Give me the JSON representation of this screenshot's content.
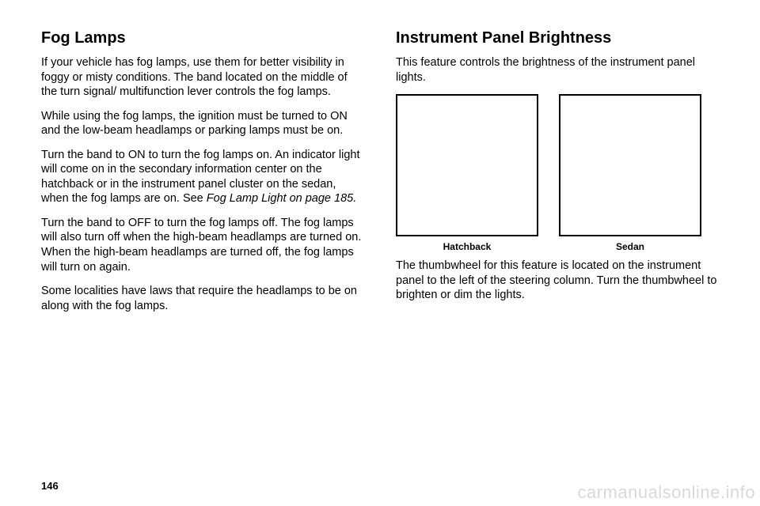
{
  "left": {
    "heading": "Fog Lamps",
    "p1": "If your vehicle has fog lamps, use them for better visibility in foggy or misty conditions. The band located on the middle of the turn signal/ multifunction lever controls the fog lamps.",
    "p2": "While using the fog lamps, the ignition must be turned to ON and the low-beam headlamps or parking lamps must be on.",
    "p3a": "Turn the band to ON to turn the fog lamps on. An indicator light will come on in the secondary information center on the hatchback or in the instrument panel cluster on the sedan, when the fog lamps are on. See ",
    "p3b": "Fog Lamp Light on page 185.",
    "p4": "Turn the band to OFF to turn the fog lamps off. The fog lamps will also turn off when the high-beam headlamps are turned on. When the high-beam headlamps are turned off, the fog lamps will turn on again.",
    "p5": "Some localities have laws that require the headlamps to be on along with the fog lamps."
  },
  "right": {
    "heading": "Instrument Panel Brightness",
    "p1": "This feature controls the brightness of the instrument panel lights.",
    "cap1": "Hatchback",
    "cap2": "Sedan",
    "p2": "The thumbwheel for this feature is located on the instrument panel to the left of the steering column. Turn the thumbwheel to brighten or dim the lights."
  },
  "pagenum": "146",
  "watermark": "carmanualsonline.info"
}
